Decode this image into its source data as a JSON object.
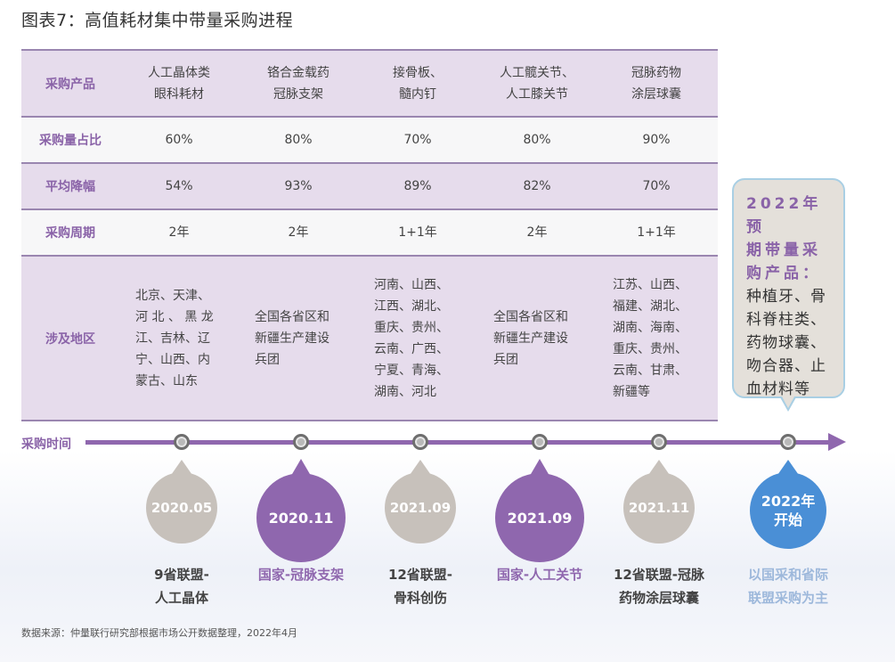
{
  "title": "图表7：高值耗材集中带量采购进程",
  "table": {
    "row_headers": [
      "采购产品",
      "采购量占比",
      "平均降幅",
      "采购周期",
      "涉及地区"
    ],
    "columns": [
      {
        "product_l1": "人工晶体类",
        "product_l2": "眼科耗材",
        "share": "60%",
        "drop": "54%",
        "cycle": "2年",
        "regions": [
          "北京、天津、",
          "河 北 、 黑 龙",
          "江、吉林、辽",
          "宁、山西、内",
          "蒙古、山东"
        ]
      },
      {
        "product_l1": "铬合金载药",
        "product_l2": "冠脉支架",
        "share": "80%",
        "drop": "93%",
        "cycle": "2年",
        "regions": [
          "全国各省区和",
          "新疆生产建设",
          "兵团"
        ]
      },
      {
        "product_l1": "接骨板、",
        "product_l2": "髓内钉",
        "share": "70%",
        "drop": "89%",
        "cycle": "1+1年",
        "regions": [
          "河南、山西、",
          "江西、湖北、",
          "重庆、贵州、",
          "云南、广西、",
          "宁夏、青海、",
          "湖南、河北"
        ]
      },
      {
        "product_l1": "人工髋关节、",
        "product_l2": "人工膝关节",
        "share": "80%",
        "drop": "82%",
        "cycle": "2年",
        "regions": [
          "全国各省区和",
          "新疆生产建设",
          "兵团"
        ]
      },
      {
        "product_l1": "冠脉药物",
        "product_l2": "涂层球囊",
        "share": "90%",
        "drop": "70%",
        "cycle": "1+1年",
        "regions": [
          "江苏、山西、",
          "福建、湖北、",
          "湖南、海南、",
          "重庆、贵州、",
          "云南、甘肃、",
          "新疆等"
        ]
      }
    ]
  },
  "callout": {
    "title_lines": [
      "2022年预",
      "期带量采",
      "购产品："
    ],
    "body_lines": [
      "种植牙、骨",
      "科脊柱类、",
      "药物球囊、",
      "吻合器、止",
      "血材料等"
    ]
  },
  "timeline": {
    "axis_label": "采购时间",
    "events": [
      {
        "date": "2020.05",
        "desc_l1": "9省联盟-",
        "desc_l2": "人工晶体",
        "style": "gray"
      },
      {
        "date": "2020.11",
        "desc_l1": "国家-冠脉支架",
        "desc_l2": "",
        "style": "purple"
      },
      {
        "date": "2021.09",
        "desc_l1": "12省联盟-",
        "desc_l2": "骨科创伤",
        "style": "gray"
      },
      {
        "date": "2021.09",
        "desc_l1": "国家-人工关节",
        "desc_l2": "",
        "style": "purple"
      },
      {
        "date": "2021.11",
        "desc_l1": "12省联盟-冠脉",
        "desc_l2": "药物涂层球囊",
        "style": "gray"
      },
      {
        "date_l1": "2022年",
        "date_l2": "开始",
        "desc_l1": "以国采和省际",
        "desc_l2": "联盟采购为主",
        "style": "blue"
      }
    ]
  },
  "source": "数据来源：仲量联行研究部根据市场公开数据整理，2022年4月",
  "colors": {
    "accent_purple": "#8f67ae",
    "header_purple": "#8a63a8",
    "gray_drop": "#c7c1bb",
    "blue_drop": "#4a8fd6"
  }
}
